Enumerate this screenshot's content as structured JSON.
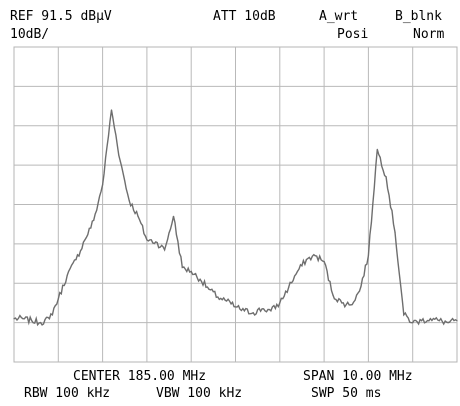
{
  "header": {
    "ref": "REF 91.5 dBμV",
    "att": "ATT 10dB",
    "trace_a": "A_wrt",
    "trace_b": "B_blnk",
    "scale": "10dB/",
    "detector": "Posi",
    "mode": "Norm"
  },
  "footer": {
    "center": "CENTER 185.00 MHz",
    "span": "SPAN 10.00 MHz",
    "rbw": "RBW 100 kHz",
    "vbw": "VBW 100 kHz",
    "swp": "SWP 50 ms"
  },
  "chart_data": {
    "type": "line",
    "ref_level_dBuV": 91.5,
    "db_per_div": 10,
    "vertical_divisions": 8,
    "horizontal_divisions": 10,
    "center_MHz": 185.0,
    "span_MHz": 10.0,
    "xlim": [
      180.0,
      190.0
    ],
    "ylim": [
      11.5,
      91.5
    ],
    "grid": true,
    "trace_color": "#6e6e6e",
    "x": [
      180.0,
      180.2,
      180.4,
      180.6,
      180.8,
      181.0,
      181.2,
      181.4,
      181.6,
      181.8,
      182.0,
      182.2,
      182.4,
      182.6,
      182.8,
      183.0,
      183.2,
      183.4,
      183.6,
      183.8,
      184.0,
      184.2,
      184.4,
      184.6,
      184.8,
      185.0,
      185.2,
      185.4,
      185.6,
      185.8,
      186.0,
      186.2,
      186.4,
      186.6,
      186.8,
      187.0,
      187.2,
      187.4,
      187.6,
      187.8,
      188.0,
      188.2,
      188.4,
      188.6,
      188.8,
      189.0,
      189.2,
      189.4,
      189.6,
      189.8,
      190.0
    ],
    "y": [
      22.5,
      22.5,
      22.0,
      21.5,
      22.5,
      27.5,
      33.5,
      37.5,
      42.5,
      47.5,
      56.5,
      75.5,
      62.5,
      52.5,
      48.5,
      42.5,
      42.0,
      40.0,
      48.5,
      35.5,
      34.5,
      32.5,
      30.0,
      28.0,
      27.0,
      25.5,
      24.5,
      24.0,
      25.0,
      24.5,
      26.5,
      30.5,
      34.5,
      37.5,
      38.5,
      37.0,
      28.5,
      26.5,
      26.0,
      29.5,
      38.5,
      65.5,
      58.5,
      44.5,
      23.5,
      21.5,
      22.0,
      22.5,
      22.0,
      21.5,
      22.0
    ]
  }
}
